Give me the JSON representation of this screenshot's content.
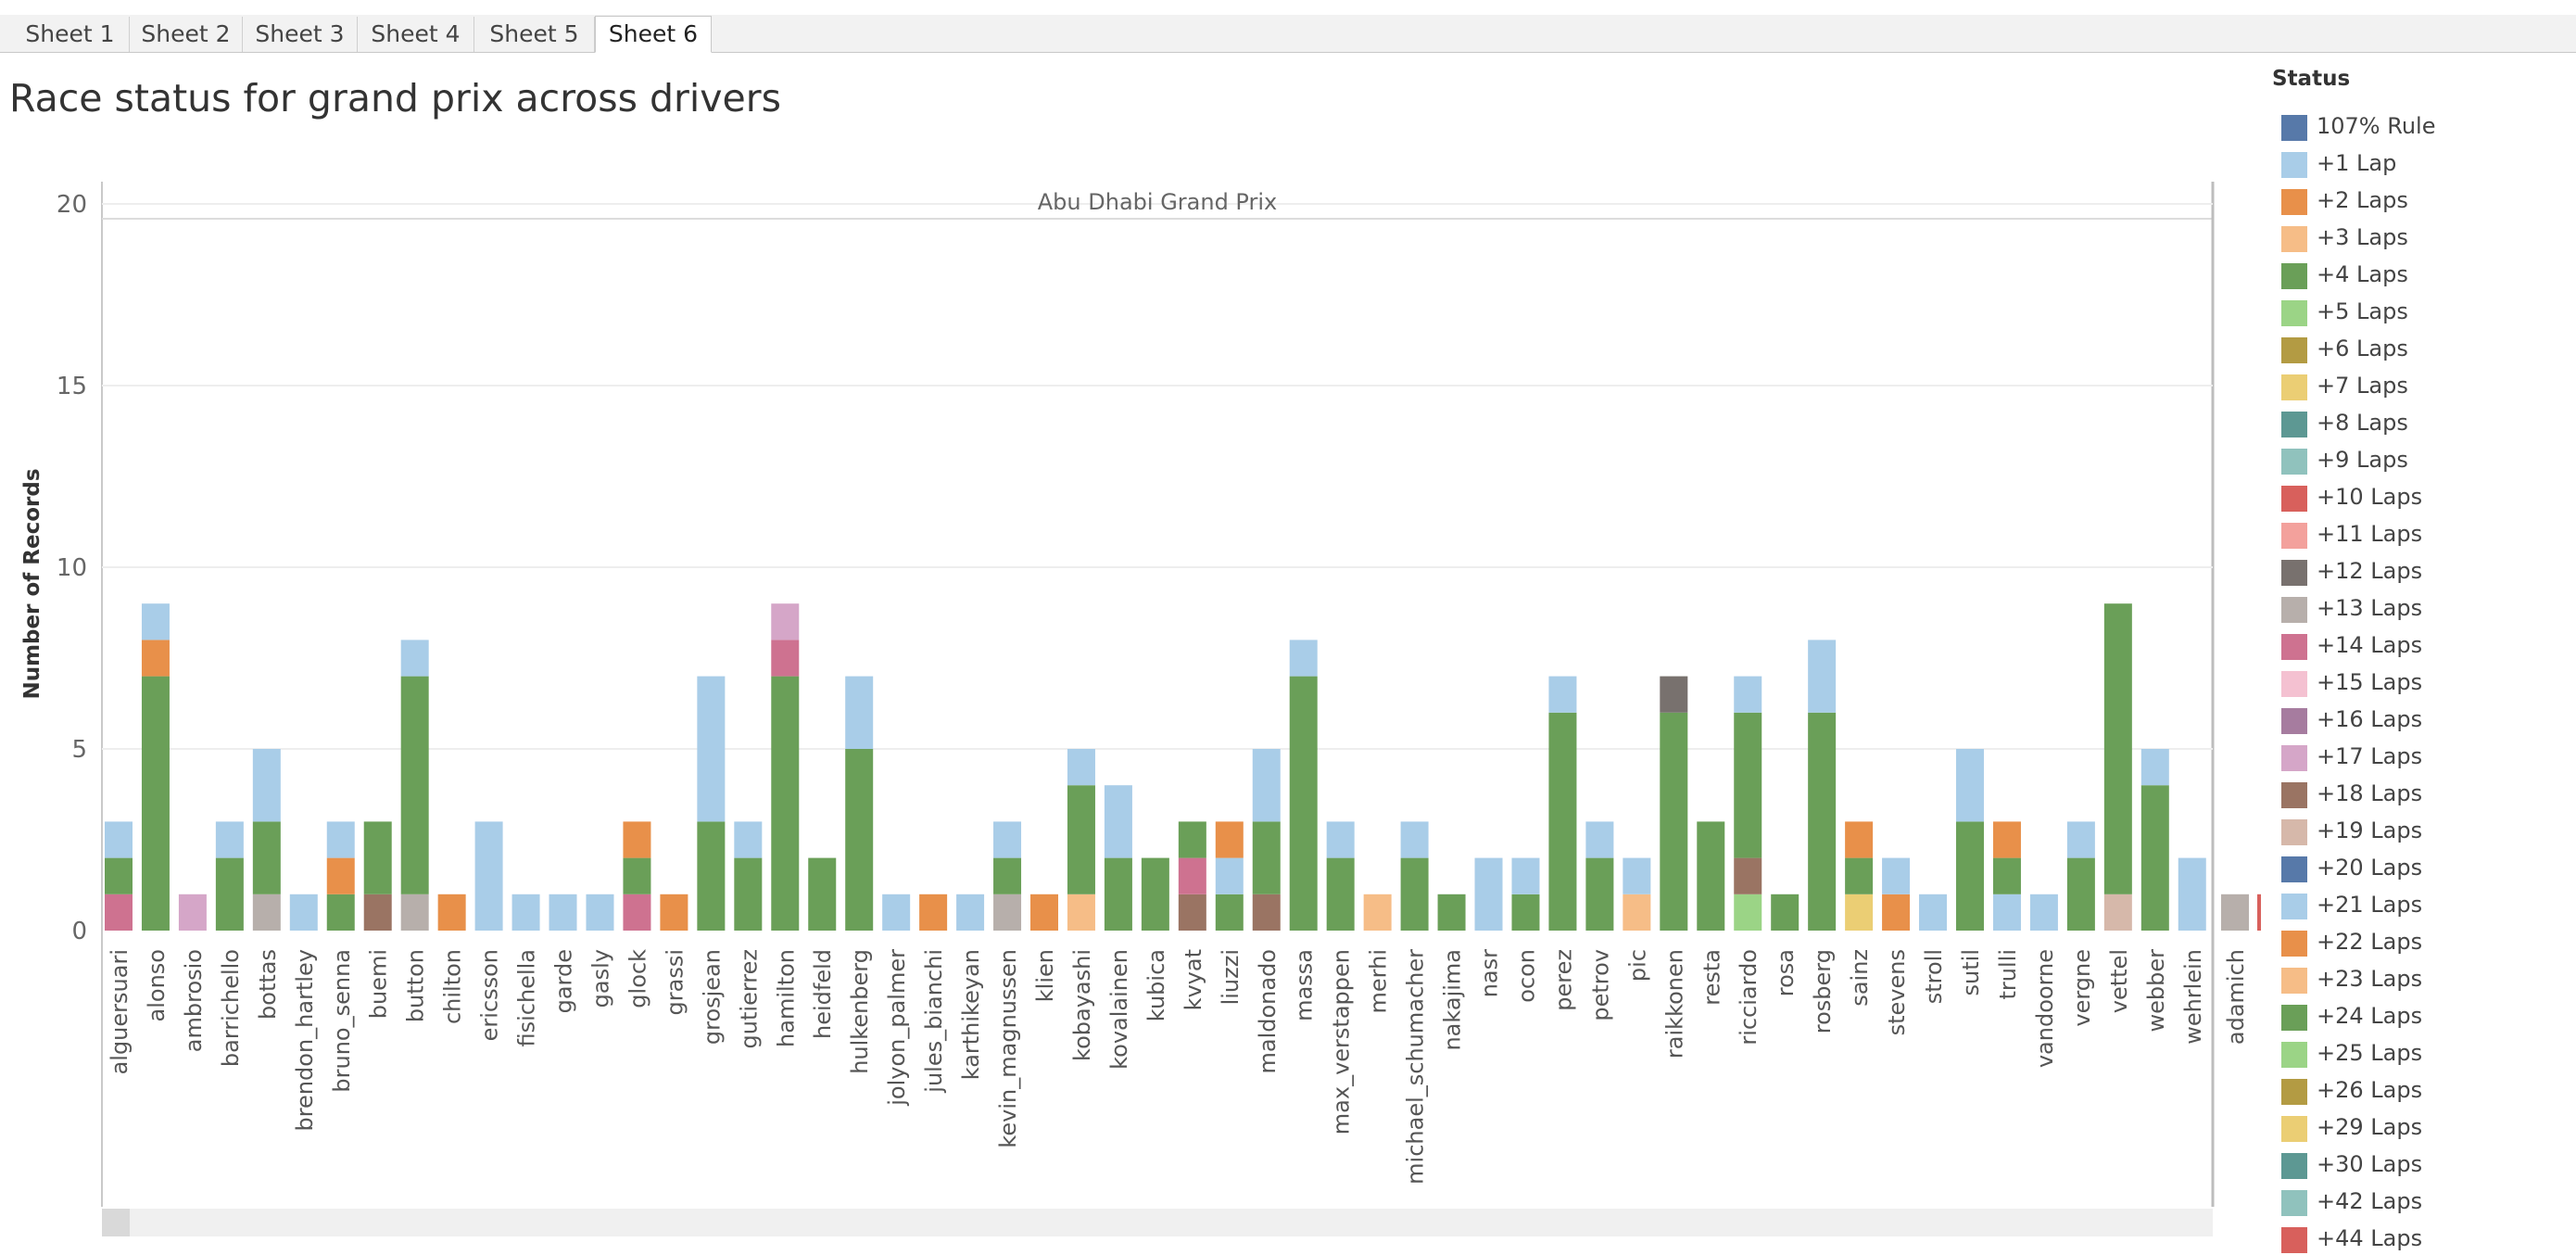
{
  "tabs": [
    {
      "label": "Sheet 1",
      "active": false
    },
    {
      "label": "Sheet 2",
      "active": false
    },
    {
      "label": "Sheet 3",
      "active": false
    },
    {
      "label": "Sheet 4",
      "active": false
    },
    {
      "label": "Sheet 5",
      "active": false
    },
    {
      "label": "Sheet 6",
      "active": true
    }
  ],
  "title": "Race status for grand prix across drivers",
  "legend": {
    "title": "Status",
    "items": [
      {
        "label": "107% Rule",
        "color": "#5779a9"
      },
      {
        "label": "+1 Lap",
        "color": "#a9cde8"
      },
      {
        "label": "+2 Laps",
        "color": "#e8904a"
      },
      {
        "label": "+3 Laps",
        "color": "#f6bd87"
      },
      {
        "label": "+4 Laps",
        "color": "#6a9f58"
      },
      {
        "label": "+5 Laps",
        "color": "#9bd486"
      },
      {
        "label": "+6 Laps",
        "color": "#b39b43"
      },
      {
        "label": "+7 Laps",
        "color": "#ebce74"
      },
      {
        "label": "+8 Laps",
        "color": "#5d9893"
      },
      {
        "label": "+9 Laps",
        "color": "#90c2bd"
      },
      {
        "label": "+10 Laps",
        "color": "#d8605c"
      },
      {
        "label": "+11 Laps",
        "color": "#f3a19c"
      },
      {
        "label": "+12 Laps",
        "color": "#78716e"
      },
      {
        "label": "+13 Laps",
        "color": "#b7afab"
      },
      {
        "label": "+14 Laps",
        "color": "#ce7290"
      },
      {
        "label": "+15 Laps",
        "color": "#f4c1d1"
      },
      {
        "label": "+16 Laps",
        "color": "#a67c9f"
      },
      {
        "label": "+17 Laps",
        "color": "#d5a6c8"
      },
      {
        "label": "+18 Laps",
        "color": "#9a7463"
      },
      {
        "label": "+19 Laps",
        "color": "#d6b8aa"
      },
      {
        "label": "+20 Laps",
        "color": "#5779a9"
      },
      {
        "label": "+21 Laps",
        "color": "#a9cde8"
      },
      {
        "label": "+22 Laps",
        "color": "#e8904a"
      },
      {
        "label": "+23 Laps",
        "color": "#f6bd87"
      },
      {
        "label": "+24 Laps",
        "color": "#6a9f58"
      },
      {
        "label": "+25 Laps",
        "color": "#9bd486"
      },
      {
        "label": "+26 Laps",
        "color": "#b39b43"
      },
      {
        "label": "+29 Laps",
        "color": "#ebce74"
      },
      {
        "label": "+30 Laps",
        "color": "#5d9893"
      },
      {
        "label": "+42 Laps",
        "color": "#90c2bd"
      },
      {
        "label": "+44 Laps",
        "color": "#d8605c"
      }
    ]
  },
  "chart_data": {
    "type": "bar",
    "stacked": true,
    "panel_header": "Abu Dhabi Grand Prix",
    "ylabel": "Number of Records",
    "ylim": [
      0,
      21
    ],
    "yticks": [
      0,
      5,
      10,
      15,
      20
    ],
    "grid": true,
    "legend_placement": "right",
    "categories": [
      "alguersuari",
      "alonso",
      "ambrosio",
      "barrichello",
      "bottas",
      "brendon_hartley",
      "bruno_senna",
      "buemi",
      "button",
      "chilton",
      "ericsson",
      "fisichella",
      "garde",
      "gasly",
      "glock",
      "grassi",
      "grosjean",
      "gutierrez",
      "hamilton",
      "heidfeld",
      "hulkenberg",
      "jolyon_palmer",
      "jules_bianchi",
      "karthikeyan",
      "kevin_magnussen",
      "klien",
      "kobayashi",
      "kovalainen",
      "kubica",
      "kvyat",
      "liuzzi",
      "maldonado",
      "massa",
      "max_verstappen",
      "merhi",
      "michael_schumacher",
      "nakajima",
      "nasr",
      "ocon",
      "perez",
      "petrov",
      "pic",
      "raikkonen",
      "resta",
      "ricciardo",
      "rosa",
      "rosberg",
      "sainz",
      "stevens",
      "stroll",
      "sutil",
      "trulli",
      "vandoorne",
      "vergne",
      "vettel",
      "webber",
      "wehrlein"
    ],
    "bars": [
      [
        {
          "c": "#ce7290",
          "v": 1
        },
        {
          "c": "#6a9f58",
          "v": 1
        },
        {
          "c": "#a9cde8",
          "v": 1
        }
      ],
      [
        {
          "c": "#6a9f58",
          "v": 7
        },
        {
          "c": "#e8904a",
          "v": 1
        },
        {
          "c": "#a9cde8",
          "v": 1
        }
      ],
      [
        {
          "c": "#d5a6c8",
          "v": 1
        }
      ],
      [
        {
          "c": "#6a9f58",
          "v": 2
        },
        {
          "c": "#a9cde8",
          "v": 1
        }
      ],
      [
        {
          "c": "#b7afab",
          "v": 1
        },
        {
          "c": "#6a9f58",
          "v": 2
        },
        {
          "c": "#a9cde8",
          "v": 2
        }
      ],
      [
        {
          "c": "#a9cde8",
          "v": 1
        }
      ],
      [
        {
          "c": "#6a9f58",
          "v": 1
        },
        {
          "c": "#e8904a",
          "v": 1
        },
        {
          "c": "#a9cde8",
          "v": 1
        }
      ],
      [
        {
          "c": "#9a7463",
          "v": 1
        },
        {
          "c": "#6a9f58",
          "v": 2
        }
      ],
      [
        {
          "c": "#b7afab",
          "v": 1
        },
        {
          "c": "#6a9f58",
          "v": 6
        },
        {
          "c": "#a9cde8",
          "v": 1
        }
      ],
      [
        {
          "c": "#e8904a",
          "v": 1
        }
      ],
      [
        {
          "c": "#a9cde8",
          "v": 3
        }
      ],
      [
        {
          "c": "#a9cde8",
          "v": 1
        }
      ],
      [
        {
          "c": "#a9cde8",
          "v": 1
        }
      ],
      [
        {
          "c": "#a9cde8",
          "v": 1
        }
      ],
      [
        {
          "c": "#ce7290",
          "v": 1
        },
        {
          "c": "#6a9f58",
          "v": 1
        },
        {
          "c": "#e8904a",
          "v": 1
        }
      ],
      [
        {
          "c": "#e8904a",
          "v": 1
        }
      ],
      [
        {
          "c": "#6a9f58",
          "v": 3
        },
        {
          "c": "#a9cde8",
          "v": 4
        }
      ],
      [
        {
          "c": "#6a9f58",
          "v": 2
        },
        {
          "c": "#a9cde8",
          "v": 1
        }
      ],
      [
        {
          "c": "#6a9f58",
          "v": 7
        },
        {
          "c": "#ce7290",
          "v": 1
        },
        {
          "c": "#d5a6c8",
          "v": 1
        }
      ],
      [
        {
          "c": "#6a9f58",
          "v": 2
        }
      ],
      [
        {
          "c": "#6a9f58",
          "v": 5
        },
        {
          "c": "#a9cde8",
          "v": 2
        }
      ],
      [
        {
          "c": "#a9cde8",
          "v": 1
        }
      ],
      [
        {
          "c": "#e8904a",
          "v": 1
        }
      ],
      [
        {
          "c": "#a9cde8",
          "v": 1
        }
      ],
      [
        {
          "c": "#b7afab",
          "v": 1
        },
        {
          "c": "#6a9f58",
          "v": 1
        },
        {
          "c": "#a9cde8",
          "v": 1
        }
      ],
      [
        {
          "c": "#e8904a",
          "v": 1
        }
      ],
      [
        {
          "c": "#f6bd87",
          "v": 1
        },
        {
          "c": "#6a9f58",
          "v": 3
        },
        {
          "c": "#a9cde8",
          "v": 1
        }
      ],
      [
        {
          "c": "#6a9f58",
          "v": 2
        },
        {
          "c": "#a9cde8",
          "v": 2
        }
      ],
      [
        {
          "c": "#6a9f58",
          "v": 2
        }
      ],
      [
        {
          "c": "#9a7463",
          "v": 1
        },
        {
          "c": "#ce7290",
          "v": 1
        },
        {
          "c": "#6a9f58",
          "v": 1
        }
      ],
      [
        {
          "c": "#6a9f58",
          "v": 1
        },
        {
          "c": "#a9cde8",
          "v": 1
        },
        {
          "c": "#e8904a",
          "v": 1
        }
      ],
      [
        {
          "c": "#9a7463",
          "v": 1
        },
        {
          "c": "#6a9f58",
          "v": 2
        },
        {
          "c": "#a9cde8",
          "v": 2
        }
      ],
      [
        {
          "c": "#6a9f58",
          "v": 7
        },
        {
          "c": "#a9cde8",
          "v": 1
        }
      ],
      [
        {
          "c": "#6a9f58",
          "v": 2
        },
        {
          "c": "#a9cde8",
          "v": 1
        }
      ],
      [
        {
          "c": "#f6bd87",
          "v": 1
        }
      ],
      [
        {
          "c": "#6a9f58",
          "v": 2
        },
        {
          "c": "#a9cde8",
          "v": 1
        }
      ],
      [
        {
          "c": "#6a9f58",
          "v": 1
        }
      ],
      [
        {
          "c": "#a9cde8",
          "v": 2
        }
      ],
      [
        {
          "c": "#6a9f58",
          "v": 1
        },
        {
          "c": "#a9cde8",
          "v": 1
        }
      ],
      [
        {
          "c": "#6a9f58",
          "v": 6
        },
        {
          "c": "#a9cde8",
          "v": 1
        }
      ],
      [
        {
          "c": "#6a9f58",
          "v": 2
        },
        {
          "c": "#a9cde8",
          "v": 1
        }
      ],
      [
        {
          "c": "#f6bd87",
          "v": 1
        },
        {
          "c": "#a9cde8",
          "v": 1
        }
      ],
      [
        {
          "c": "#6a9f58",
          "v": 6
        },
        {
          "c": "#78716e",
          "v": 1
        }
      ],
      [
        {
          "c": "#6a9f58",
          "v": 3
        }
      ],
      [
        {
          "c": "#9bd486",
          "v": 1
        },
        {
          "c": "#9a7463",
          "v": 1
        },
        {
          "c": "#6a9f58",
          "v": 4
        },
        {
          "c": "#a9cde8",
          "v": 1
        }
      ],
      [
        {
          "c": "#6a9f58",
          "v": 1
        }
      ],
      [
        {
          "c": "#6a9f58",
          "v": 6
        },
        {
          "c": "#a9cde8",
          "v": 2
        }
      ],
      [
        {
          "c": "#ebce74",
          "v": 1
        },
        {
          "c": "#6a9f58",
          "v": 1
        },
        {
          "c": "#e8904a",
          "v": 1
        }
      ],
      [
        {
          "c": "#e8904a",
          "v": 1
        },
        {
          "c": "#a9cde8",
          "v": 1
        }
      ],
      [
        {
          "c": "#a9cde8",
          "v": 1
        }
      ],
      [
        {
          "c": "#6a9f58",
          "v": 3
        },
        {
          "c": "#a9cde8",
          "v": 2
        }
      ],
      [
        {
          "c": "#a9cde8",
          "v": 1
        },
        {
          "c": "#6a9f58",
          "v": 1
        },
        {
          "c": "#e8904a",
          "v": 1
        }
      ],
      [
        {
          "c": "#a9cde8",
          "v": 1
        }
      ],
      [
        {
          "c": "#6a9f58",
          "v": 2
        },
        {
          "c": "#a9cde8",
          "v": 1
        }
      ],
      [
        {
          "c": "#d6b8aa",
          "v": 1
        },
        {
          "c": "#6a9f58",
          "v": 8
        }
      ],
      [
        {
          "c": "#6a9f58",
          "v": 4
        },
        {
          "c": "#a9cde8",
          "v": 1
        }
      ],
      [
        {
          "c": "#a9cde8",
          "v": 2
        }
      ]
    ],
    "next_panel": {
      "categories": [
        "adamich"
      ],
      "bars": [
        [
          {
            "c": "#b7afab",
            "v": 1
          }
        ]
      ]
    }
  }
}
